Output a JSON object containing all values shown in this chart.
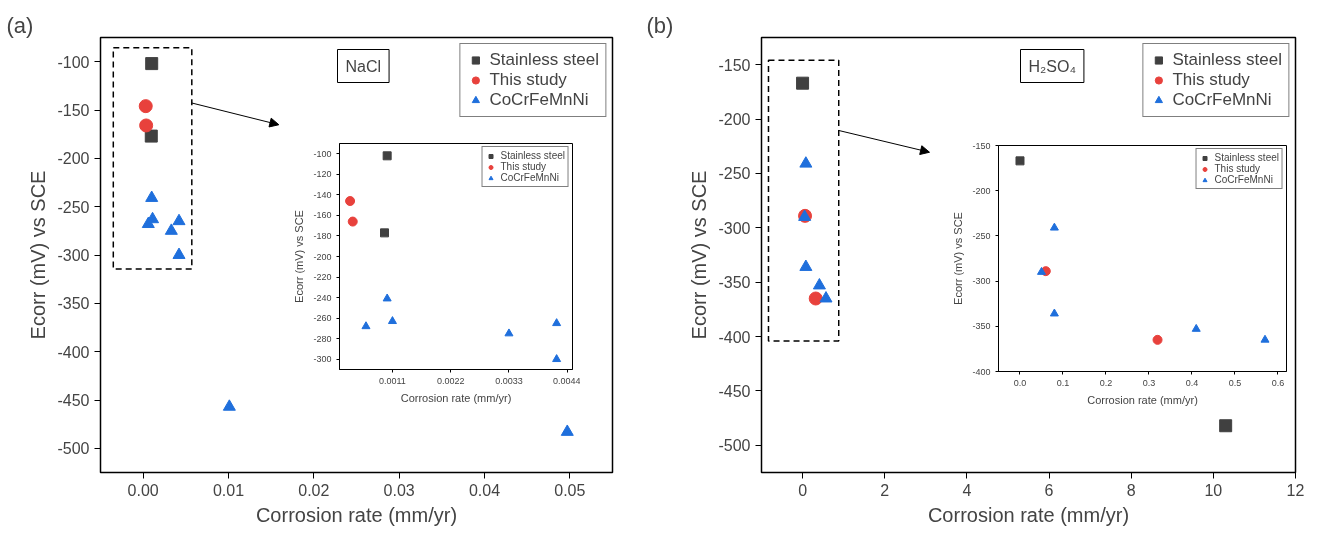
{
  "chart_data": [
    {
      "type": "scatter",
      "title": "(a)",
      "xlabel": "Corrosion rate (mm/yr)",
      "ylabel": "Ecorr (mV) vs SCE",
      "annotations": [
        "NaCl"
      ],
      "legend": "top right",
      "grid": false,
      "xlim": [
        -0.005,
        0.055
      ],
      "ylim": [
        -525,
        -75
      ],
      "xticks": [
        {
          "value": 0,
          "label": "0.00"
        },
        {
          "value": 0.01,
          "label": "0.01"
        },
        {
          "value": 0.02,
          "label": "0.02"
        },
        {
          "value": 0.03,
          "label": "0.03"
        },
        {
          "value": 0.04,
          "label": "0.04"
        },
        {
          "value": 0.05,
          "label": "0.05"
        }
      ],
      "yticks": [
        -500,
        -450,
        -400,
        -350,
        -300,
        -250,
        -200,
        -150,
        -100
      ],
      "series": [
        {
          "name": "Stainless steel",
          "color": "#404040",
          "marker": "square",
          "x": [
            0.001,
            0.00095
          ],
          "values": [
            -102,
            -177
          ]
        },
        {
          "name": "This study",
          "color": "#e8413c",
          "marker": "circle",
          "x": [
            0.0003,
            0.00035
          ],
          "values": [
            -146,
            -166
          ]
        },
        {
          "name": "CoCrFeMnNi",
          "color": "#1f6fdc",
          "marker": "triangle",
          "x": [
            0.0006,
            0.001,
            0.0011,
            0.0033,
            0.0042,
            0.0042,
            0.0101,
            0.0497
          ],
          "values": [
            -268,
            -241,
            -263,
            -275,
            -265,
            -300,
            -457,
            -483
          ]
        }
      ]
    },
    {
      "type": "scatter",
      "xlabel": "Corrosion rate (mm/yr)",
      "ylabel": "Ecorr (mV) vs SCE",
      "legend": "top right",
      "grid": false,
      "xlim": [
        0.0001,
        0.0045
      ],
      "ylim": [
        -310,
        -90
      ],
      "xticks": [
        0.0011,
        0.0022,
        0.0033,
        0.0044
      ],
      "yticks": [
        -300,
        -280,
        -260,
        -240,
        -220,
        -200,
        -180,
        -160,
        -140,
        -120,
        -100
      ],
      "series": [
        {
          "name": "Stainless steel",
          "color": "#404040",
          "marker": "square",
          "x": [
            0.001,
            0.00095
          ],
          "values": [
            -102,
            -177
          ]
        },
        {
          "name": "This study",
          "color": "#e8413c",
          "marker": "circle",
          "x": [
            0.0003,
            0.00035
          ],
          "values": [
            -146,
            -166
          ]
        },
        {
          "name": "CoCrFeMnNi",
          "color": "#1f6fdc",
          "marker": "triangle",
          "x": [
            0.0006,
            0.001,
            0.0011,
            0.0033,
            0.0042,
            0.0042
          ],
          "values": [
            -268,
            -241,
            -263,
            -275,
            -265,
            -300
          ]
        }
      ]
    },
    {
      "type": "scatter",
      "title": "(b)",
      "xlabel": "Corrosion rate (mm/yr)",
      "ylabel": "Ecorr (mV) vs SCE",
      "annotations": [
        "H₂SO₄"
      ],
      "legend": "top right",
      "grid": false,
      "xlim": [
        -1,
        12
      ],
      "ylim": [
        -525,
        -125
      ],
      "xticks": [
        0,
        2,
        4,
        6,
        8,
        10,
        12
      ],
      "yticks": [
        -500,
        -450,
        -400,
        -350,
        -300,
        -250,
        -200,
        -150
      ],
      "series": [
        {
          "name": "Stainless steel",
          "color": "#404040",
          "marker": "square",
          "x": [
            0.0,
            10.3
          ],
          "values": [
            -167,
            -482
          ]
        },
        {
          "name": "This study",
          "color": "#e8413c",
          "marker": "circle",
          "x": [
            0.06,
            0.32
          ],
          "values": [
            -289,
            -365
          ]
        },
        {
          "name": "CoCrFeMnNi",
          "color": "#1f6fdc",
          "marker": "triangle",
          "x": [
            0.05,
            0.08,
            0.08,
            0.41,
            0.57
          ],
          "values": [
            -290,
            -241,
            -336,
            -353,
            -365
          ]
        }
      ]
    },
    {
      "type": "scatter",
      "xlabel": "Corrosion rate (mm/yr)",
      "ylabel": "Ecorr (mV) vs SCE",
      "legend": "top right",
      "grid": false,
      "xlim": [
        -0.05,
        0.62
      ],
      "ylim": [
        -400,
        -150
      ],
      "xticks": [
        {
          "value": 0,
          "label": "0.0"
        },
        {
          "value": 0.1,
          "label": "0.1"
        },
        {
          "value": 0.2,
          "label": "0.2"
        },
        {
          "value": 0.3,
          "label": "0.3"
        },
        {
          "value": 0.4,
          "label": "0.4"
        },
        {
          "value": 0.5,
          "label": "0.5"
        },
        {
          "value": 0.6,
          "label": "0.6"
        }
      ],
      "yticks": [
        -400,
        -350,
        -300,
        -250,
        -200,
        -150
      ],
      "series": [
        {
          "name": "Stainless steel",
          "color": "#404040",
          "marker": "square",
          "x": [
            0.0
          ],
          "values": [
            -167
          ]
        },
        {
          "name": "This study",
          "color": "#e8413c",
          "marker": "circle",
          "x": [
            0.06,
            0.32
          ],
          "values": [
            -289,
            -365
          ]
        },
        {
          "name": "CoCrFeMnNi",
          "color": "#1f6fdc",
          "marker": "triangle",
          "x": [
            0.05,
            0.08,
            0.08,
            0.41,
            0.57
          ],
          "values": [
            -290,
            -241,
            -336,
            -353,
            -365
          ]
        }
      ]
    }
  ]
}
